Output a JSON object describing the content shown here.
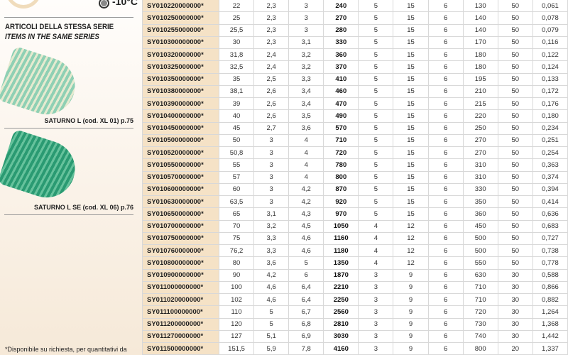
{
  "left": {
    "temperature": "-10°C",
    "series_title_it": "ARTICOLI DELLA STESSA SERIE",
    "series_title_en": "ITEMS IN THE SAME SERIES",
    "items": [
      {
        "caption": "SATURNO L (cod. XL 01) p.75"
      },
      {
        "caption": "SATURNO L SE (cod. XL 06) p.76"
      }
    ],
    "note": "*Disponibile su richiesta, per quantitativi da"
  },
  "table": {
    "rows": [
      [
        "SY010220000000*",
        "22",
        "2,3",
        "3",
        "240",
        "5",
        "15",
        "6",
        "130",
        "50",
        "0,061"
      ],
      [
        "SY010250000000*",
        "25",
        "2,3",
        "3",
        "270",
        "5",
        "15",
        "6",
        "140",
        "50",
        "0,078"
      ],
      [
        "SY010255000000*",
        "25,5",
        "2,3",
        "3",
        "280",
        "5",
        "15",
        "6",
        "140",
        "50",
        "0,079"
      ],
      [
        "SY010300000000*",
        "30",
        "2,3",
        "3,1",
        "330",
        "5",
        "15",
        "6",
        "170",
        "50",
        "0,116"
      ],
      [
        "SY010320000000*",
        "31,8",
        "2,4",
        "3,2",
        "360",
        "5",
        "15",
        "6",
        "180",
        "50",
        "0,122"
      ],
      [
        "SY010325000000*",
        "32,5",
        "2,4",
        "3,2",
        "370",
        "5",
        "15",
        "6",
        "180",
        "50",
        "0,124"
      ],
      [
        "SY010350000000*",
        "35",
        "2,5",
        "3,3",
        "410",
        "5",
        "15",
        "6",
        "195",
        "50",
        "0,133"
      ],
      [
        "SY010380000000*",
        "38,1",
        "2,6",
        "3,4",
        "460",
        "5",
        "15",
        "6",
        "210",
        "50",
        "0,172"
      ],
      [
        "SY010390000000*",
        "39",
        "2,6",
        "3,4",
        "470",
        "5",
        "15",
        "6",
        "215",
        "50",
        "0,176"
      ],
      [
        "SY010400000000*",
        "40",
        "2,6",
        "3,5",
        "490",
        "5",
        "15",
        "6",
        "220",
        "50",
        "0,180"
      ],
      [
        "SY010450000000*",
        "45",
        "2,7",
        "3,6",
        "570",
        "5",
        "15",
        "6",
        "250",
        "50",
        "0,234"
      ],
      [
        "SY010500000000*",
        "50",
        "3",
        "4",
        "710",
        "5",
        "15",
        "6",
        "270",
        "50",
        "0,251"
      ],
      [
        "SY010520000000*",
        "50,8",
        "3",
        "4",
        "720",
        "5",
        "15",
        "6",
        "270",
        "50",
        "0,254"
      ],
      [
        "SY010550000000*",
        "55",
        "3",
        "4",
        "780",
        "5",
        "15",
        "6",
        "310",
        "50",
        "0,363"
      ],
      [
        "SY010570000000*",
        "57",
        "3",
        "4",
        "800",
        "5",
        "15",
        "6",
        "310",
        "50",
        "0,374"
      ],
      [
        "SY010600000000*",
        "60",
        "3",
        "4,2",
        "870",
        "5",
        "15",
        "6",
        "330",
        "50",
        "0,394"
      ],
      [
        "SY010630000000*",
        "63,5",
        "3",
        "4,2",
        "920",
        "5",
        "15",
        "6",
        "350",
        "50",
        "0,414"
      ],
      [
        "SY010650000000*",
        "65",
        "3,1",
        "4,3",
        "970",
        "5",
        "15",
        "6",
        "360",
        "50",
        "0,636"
      ],
      [
        "SY010700000000*",
        "70",
        "3,2",
        "4,5",
        "1050",
        "4",
        "12",
        "6",
        "450",
        "50",
        "0,683"
      ],
      [
        "SY010750000000*",
        "75",
        "3,3",
        "4,6",
        "1160",
        "4",
        "12",
        "6",
        "500",
        "50",
        "0,727"
      ],
      [
        "SY010760000000*",
        "76,2",
        "3,3",
        "4,6",
        "1180",
        "4",
        "12",
        "6",
        "500",
        "50",
        "0,738"
      ],
      [
        "SY010800000000*",
        "80",
        "3,6",
        "5",
        "1350",
        "4",
        "12",
        "6",
        "550",
        "50",
        "0,778"
      ],
      [
        "SY010900000000*",
        "90",
        "4,2",
        "6",
        "1870",
        "3",
        "9",
        "6",
        "630",
        "30",
        "0,588"
      ],
      [
        "SY011000000000*",
        "100",
        "4,6",
        "6,4",
        "2210",
        "3",
        "9",
        "6",
        "710",
        "30",
        "0,866"
      ],
      [
        "SY011020000000*",
        "102",
        "4,6",
        "6,4",
        "2250",
        "3",
        "9",
        "6",
        "710",
        "30",
        "0,882"
      ],
      [
        "SY011100000000*",
        "110",
        "5",
        "6,7",
        "2560",
        "3",
        "9",
        "6",
        "720",
        "30",
        "1,264"
      ],
      [
        "SY011200000000*",
        "120",
        "5",
        "6,8",
        "2810",
        "3",
        "9",
        "6",
        "730",
        "30",
        "1,368"
      ],
      [
        "SY011270000000*",
        "127",
        "5,1",
        "6,9",
        "3030",
        "3",
        "9",
        "6",
        "740",
        "30",
        "1,442"
      ],
      [
        "SY011500000000*",
        "151,5",
        "5,9",
        "7,8",
        "4160",
        "3",
        "9",
        "6",
        "800",
        "20",
        "1,337"
      ]
    ]
  }
}
